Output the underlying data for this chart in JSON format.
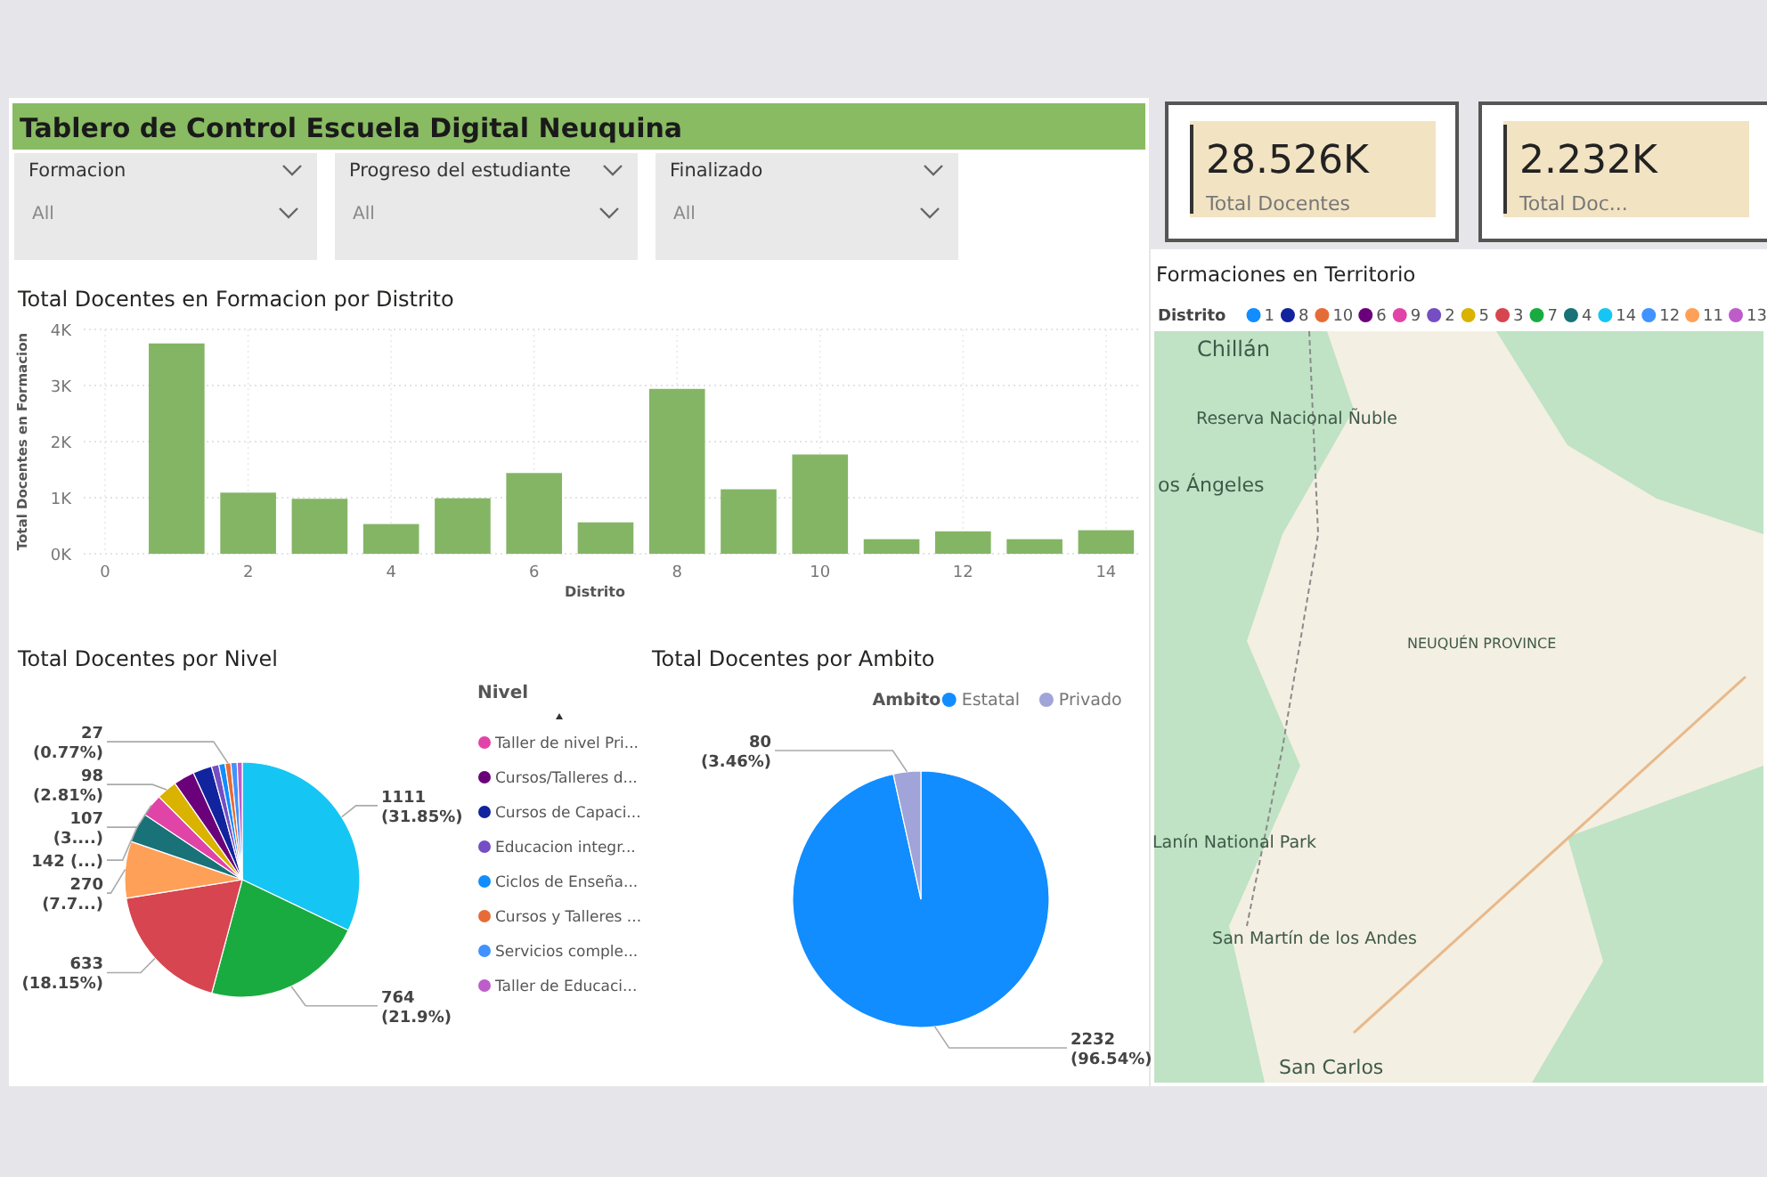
{
  "chart_data": [
    {
      "type": "other",
      "title": "Tablero de Control Escuela Digital Neuquina",
      "annotations": [
        "Formacion",
        "All",
        "Progreso del estudiante",
        "All",
        "Finalizado",
        "All"
      ]
    },
    {
      "type": "other",
      "annotations": [
        "28.526K",
        "Total Docentes",
        "2.232K",
        "Total Doc..."
      ]
    },
    {
      "type": "bar",
      "title": "Total Docentes en Formacion por Distrito",
      "xlabel": "Distrito",
      "ylabel": "Total Docentes en Formacion",
      "x": [
        1,
        2,
        3,
        4,
        5,
        6,
        7,
        8,
        9,
        10,
        11,
        12,
        13,
        14
      ],
      "values": [
        3750,
        1090,
        980,
        530,
        990,
        1440,
        560,
        2940,
        1150,
        1770,
        260,
        400,
        260,
        420
      ],
      "color": "#84b565",
      "xlim": [
        -0.3,
        14.5
      ],
      "xticks": [
        0,
        2,
        4,
        6,
        8,
        10,
        12,
        14
      ],
      "ylim": [
        0,
        4000
      ],
      "yticks": [
        {
          "value": 0,
          "label": "0K"
        },
        {
          "value": 1000,
          "label": "1K"
        },
        {
          "value": 2000,
          "label": "2K"
        },
        {
          "value": 3000,
          "label": "3K"
        },
        {
          "value": 4000,
          "label": "4K"
        }
      ],
      "grid": true
    },
    {
      "type": "pie",
      "title": "Total Docentes por Nivel",
      "legend_title": "Nivel",
      "legend": "right",
      "categories": [
        null,
        null,
        null,
        null,
        null,
        "Taller de nivel Pri...",
        null,
        "Cursos/Talleres d...",
        "Cursos de Capaci...",
        "Educacion integr...",
        "Ciclos de Enseña...",
        "Cursos y Talleres ...",
        "Servicios comple...",
        "Taller de Educaci..."
      ],
      "values": [
        1111,
        764,
        633,
        270,
        142,
        107,
        98,
        100,
        90,
        35,
        30,
        27,
        30,
        24
      ],
      "colors": [
        "#15c6f4",
        "#1aab40",
        "#d64550",
        "#ffa058",
        "#197278",
        "#e044a7",
        "#d9b300",
        "#6b007b",
        "#12239e",
        "#744ec2",
        "#118dff",
        "#e66c37",
        "#4092ff",
        "#be5dc9"
      ],
      "value_labels": [
        "1111 (31.85%)",
        "764 (21.9%)",
        "633 (18.15%)",
        "270 (7.7...)",
        "142 (...)",
        "107 (3....)",
        "98 (2.81%)",
        null,
        null,
        null,
        null,
        "27 (0.77%)",
        null,
        null
      ]
    },
    {
      "type": "pie",
      "title": "Total Docentes por Ambito",
      "legend_title": "Ambito",
      "legend": "top right",
      "categories": [
        "Estatal",
        "Privado"
      ],
      "values": [
        2232,
        80
      ],
      "colors": [
        "#118dff",
        "#a0a4d8"
      ],
      "value_labels": [
        "2232 (96.54%)",
        "80 (3.46%)"
      ]
    },
    {
      "type": "other",
      "title": "Formaciones en Territorio",
      "legend_title": "Distrito",
      "categories": [
        "1",
        "8",
        "10",
        "6",
        "9",
        "2",
        "5",
        "3",
        "7",
        "4",
        "14",
        "12",
        "11",
        "13"
      ],
      "colors": [
        "#118dff",
        "#12239e",
        "#e66c37",
        "#6b007b",
        "#e044a7",
        "#744ec2",
        "#d9b300",
        "#d64550",
        "#1aab40",
        "#197278",
        "#15c6f4",
        "#4092ff",
        "#ffa058",
        "#be5dc9"
      ],
      "annotations": [
        "Chillán",
        "Reserva Nacional Ñuble",
        "os Ángeles",
        "NEUQUÉN PROVINCE",
        "Lanín National Park",
        "San Martín de los Andes",
        "San Carlos"
      ]
    }
  ]
}
